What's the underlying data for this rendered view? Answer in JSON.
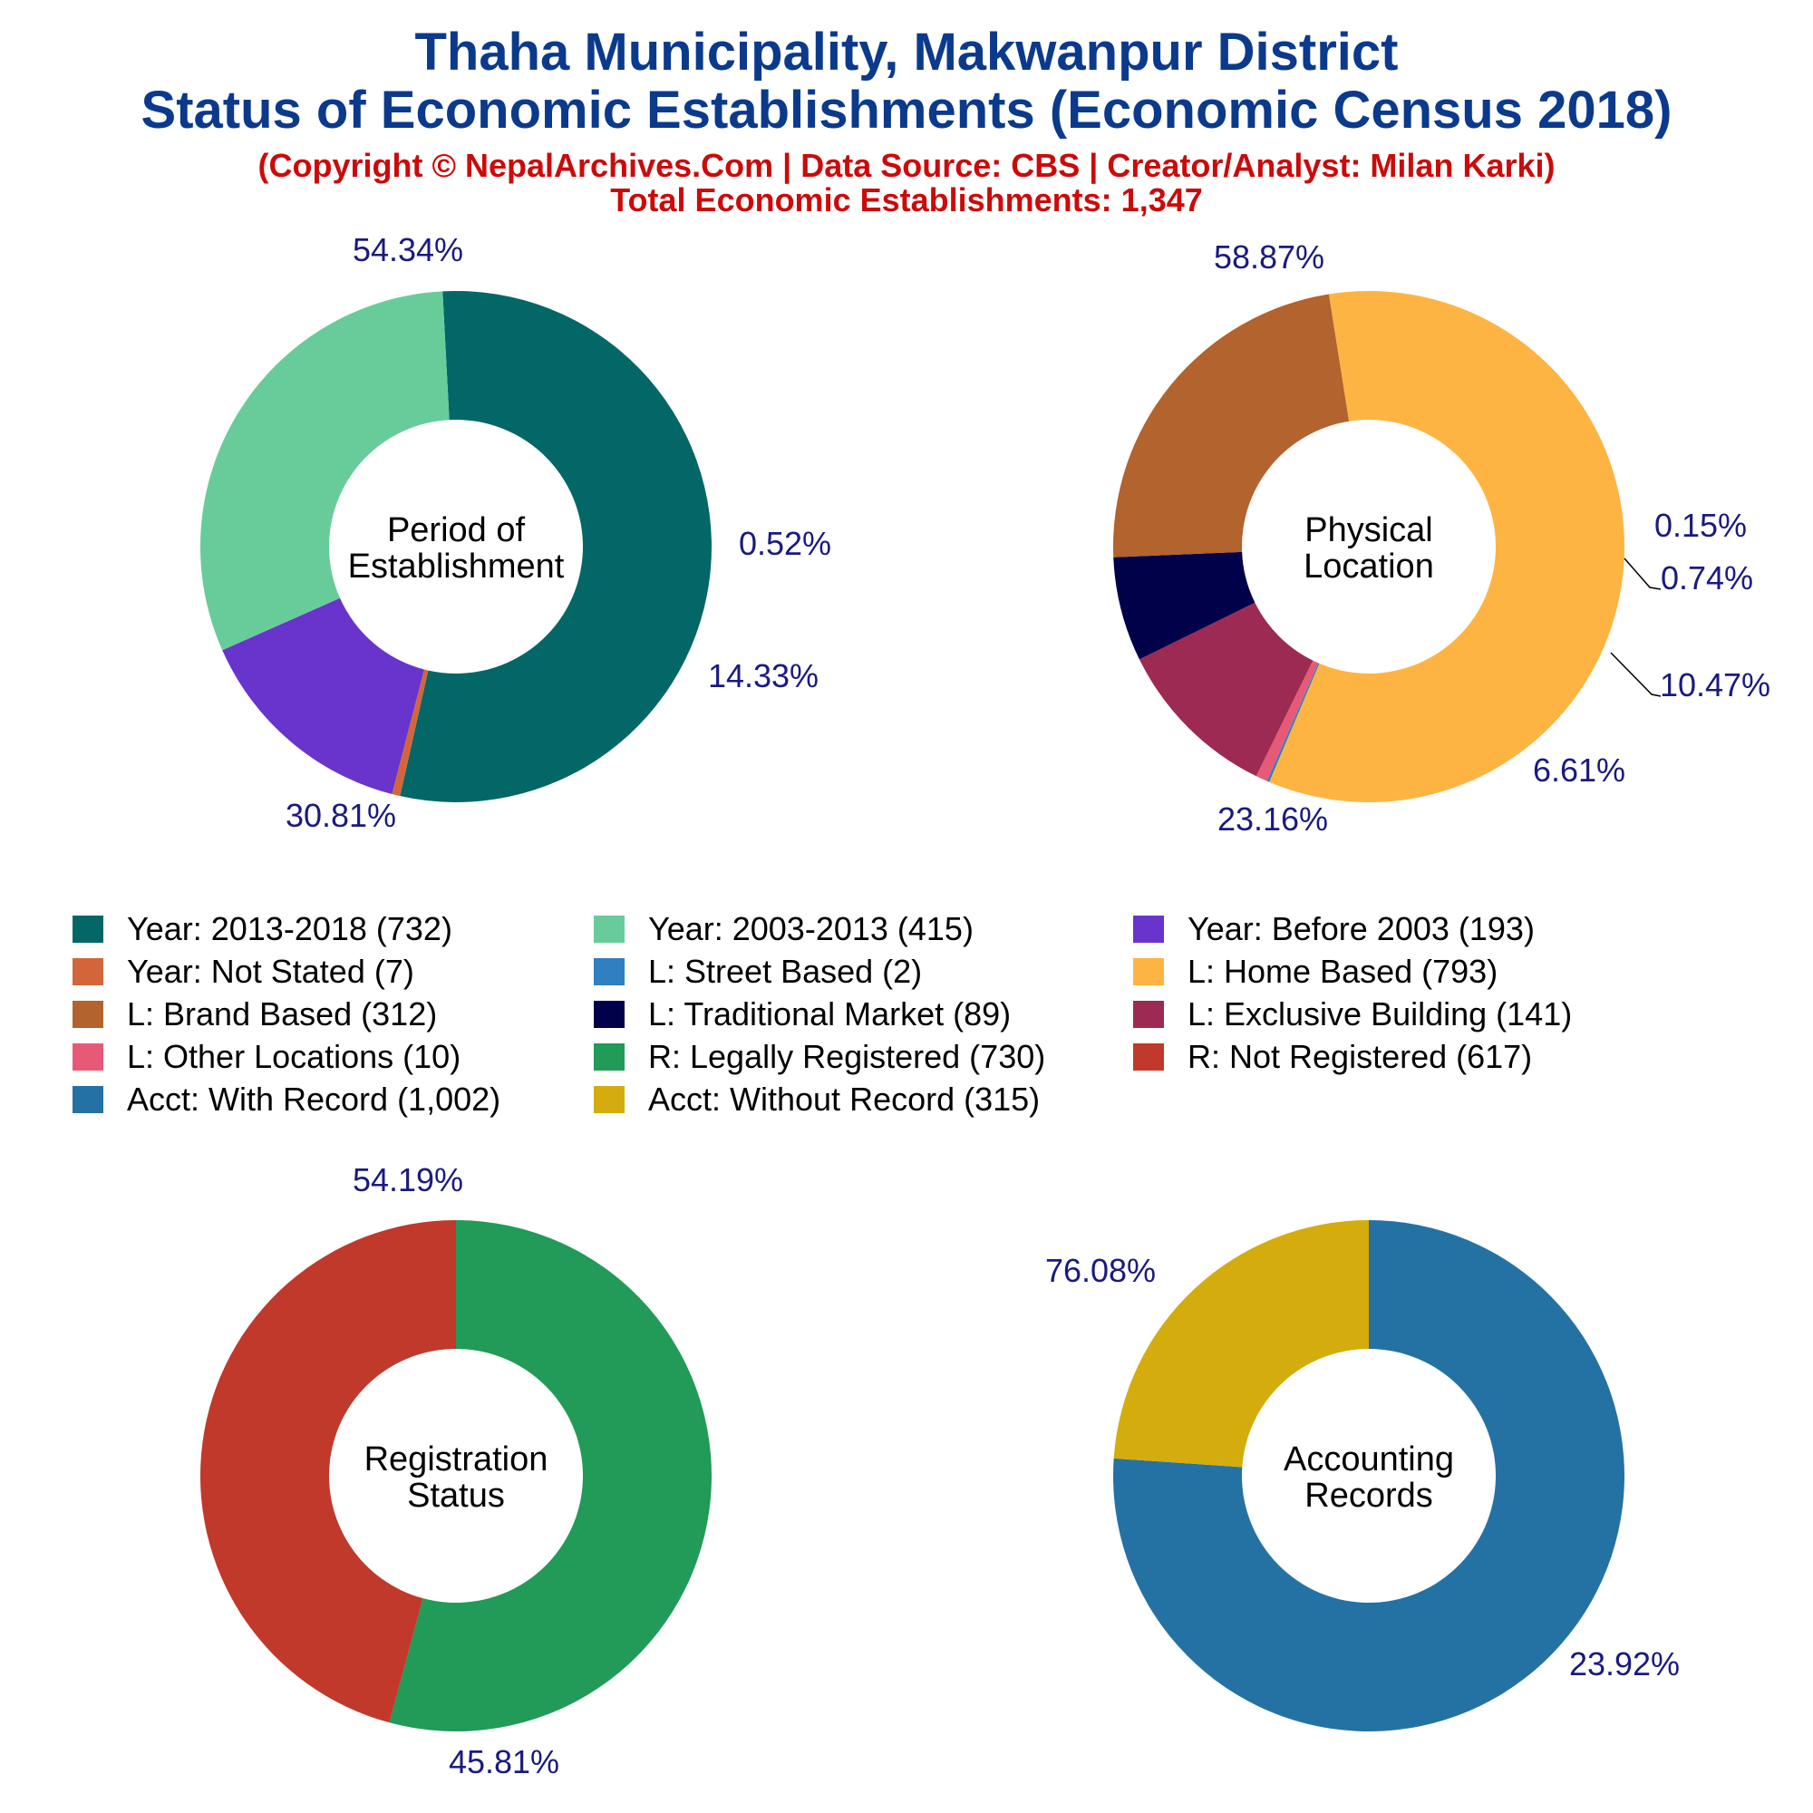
{
  "title": {
    "line1": "Thaha Municipality, Makwanpur District",
    "line2": "Status of Economic Establishments (Economic Census 2018)",
    "copyright": "(Copyright © NepalArchives.Com | Data Source: CBS | Creator/Analyst: Milan Karki)",
    "total": "Total Economic Establishments: 1,347"
  },
  "colors": {
    "title": "#0b3a8c",
    "subtitle": "#cc0a0a",
    "percent_label": "#1a1a80"
  },
  "chart_data": [
    {
      "type": "pie",
      "center_label": [
        "Period of",
        "Establishment"
      ],
      "slices": [
        {
          "name": "Year: 2013-2018",
          "value": 732,
          "percent": "54.34%",
          "color": "#026766"
        },
        {
          "name": "Year: Not Stated",
          "value": 7,
          "percent": "0.52%",
          "color": "#d2663a"
        },
        {
          "name": "Year: Before 2003",
          "value": 193,
          "percent": "14.33%",
          "color": "#6834cc"
        },
        {
          "name": "Year: 2003-2013",
          "value": 415,
          "percent": "30.81%",
          "color": "#68cc9a"
        }
      ]
    },
    {
      "type": "pie",
      "center_label": [
        "Physical",
        "Location"
      ],
      "slices": [
        {
          "name": "L: Home Based",
          "value": 793,
          "percent": "58.87%",
          "color": "#feb442"
        },
        {
          "name": "L: Street Based",
          "value": 2,
          "percent": "0.15%",
          "color": "#2f7fc1"
        },
        {
          "name": "L: Other Locations",
          "value": 10,
          "percent": "0.74%",
          "color": "#e65a78"
        },
        {
          "name": "L: Exclusive Building",
          "value": 141,
          "percent": "10.47%",
          "color": "#9c2a52"
        },
        {
          "name": "L: Traditional Market",
          "value": 89,
          "percent": "6.61%",
          "color": "#01014a"
        },
        {
          "name": "L: Brand Based",
          "value": 312,
          "percent": "23.16%",
          "color": "#b2632e"
        }
      ]
    },
    {
      "type": "pie",
      "center_label": [
        "Registration",
        "Status"
      ],
      "slices": [
        {
          "name": "R: Legally Registered",
          "value": 730,
          "percent": "54.19%",
          "color": "#229a58"
        },
        {
          "name": "R: Not Registered",
          "value": 617,
          "percent": "45.81%",
          "color": "#c0392b"
        }
      ]
    },
    {
      "type": "pie",
      "center_label": [
        "Accounting",
        "Records"
      ],
      "slices": [
        {
          "name": "Acct: With Record",
          "value": 1002,
          "percent": "76.08%",
          "color": "#2472a4"
        },
        {
          "name": "Acct: Without Record",
          "value": 315,
          "percent": "23.92%",
          "color": "#d4ac0d"
        }
      ]
    }
  ],
  "legend": [
    {
      "label": "Year: 2013-2018 (732)",
      "color": "#026766"
    },
    {
      "label": "Year: 2003-2013 (415)",
      "color": "#68cc9a"
    },
    {
      "label": "Year: Before 2003 (193)",
      "color": "#6834cc"
    },
    {
      "label": "Year: Not Stated (7)",
      "color": "#d2663a"
    },
    {
      "label": "L: Street Based (2)",
      "color": "#2f7fc1"
    },
    {
      "label": "L: Home Based (793)",
      "color": "#feb442"
    },
    {
      "label": "L: Brand Based (312)",
      "color": "#b2632e"
    },
    {
      "label": "L: Traditional Market (89)",
      "color": "#01014a"
    },
    {
      "label": "L: Exclusive Building (141)",
      "color": "#9c2a52"
    },
    {
      "label": "L: Other Locations (10)",
      "color": "#e65a78"
    },
    {
      "label": "R: Legally Registered (730)",
      "color": "#229a58"
    },
    {
      "label": "R: Not Registered (617)",
      "color": "#c0392b"
    },
    {
      "label": "Acct: With Record (1,002)",
      "color": "#2472a4"
    },
    {
      "label": "Acct: Without Record (315)",
      "color": "#d4ac0d"
    }
  ]
}
